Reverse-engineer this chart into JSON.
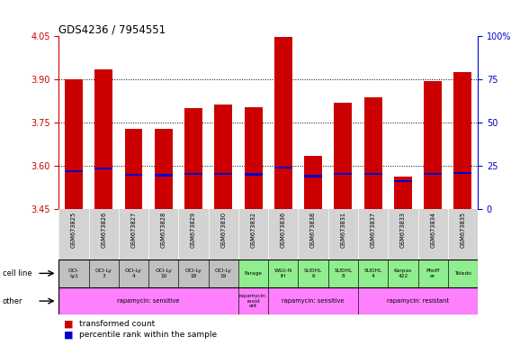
{
  "title": "GDS4236 / 7954551",
  "samples": [
    "GSM673825",
    "GSM673826",
    "GSM673827",
    "GSM673828",
    "GSM673829",
    "GSM673830",
    "GSM673832",
    "GSM673836",
    "GSM673838",
    "GSM673831",
    "GSM673837",
    "GSM673833",
    "GSM673834",
    "GSM673835"
  ],
  "transformed_count": [
    3.9,
    3.935,
    3.73,
    3.73,
    3.8,
    3.815,
    3.805,
    4.048,
    3.635,
    3.82,
    3.84,
    3.565,
    3.895,
    3.925
  ],
  "percentile_rank": [
    3.582,
    3.592,
    3.57,
    3.568,
    3.574,
    3.572,
    3.571,
    3.594,
    3.565,
    3.574,
    3.573,
    3.548,
    3.573,
    3.576
  ],
  "cell_lines": [
    "OCI-\nLy1",
    "OCI-Ly\n3",
    "OCI-Ly\n4",
    "OCI-Ly\n10",
    "OCI-Ly\n18",
    "OCI-Ly\n19",
    "Farage",
    "WSU-N\nIH",
    "SUDHL\n6",
    "SUDHL\n8",
    "SUDHL\n4",
    "Karpas\n422",
    "Pfeiff\ner",
    "Toledo"
  ],
  "cell_line_colors": [
    "#c0c0c0",
    "#c0c0c0",
    "#c0c0c0",
    "#c0c0c0",
    "#c0c0c0",
    "#c0c0c0",
    "#90ee90",
    "#90ee90",
    "#90ee90",
    "#90ee90",
    "#90ee90",
    "#90ee90",
    "#90ee90",
    "#90ee90"
  ],
  "ylim": [
    3.45,
    4.05
  ],
  "yticks_left": [
    3.45,
    3.6,
    3.75,
    3.9,
    4.05
  ],
  "yticks_right_vals": [
    0,
    25,
    50,
    75,
    100
  ],
  "grid_yticks": [
    3.6,
    3.75,
    3.9
  ],
  "bar_color": "#cc0000",
  "percentile_color": "#0000cc",
  "bar_width": 0.6,
  "tick_color_left": "#cc0000",
  "tick_color_right": "#0000cc",
  "other_data": [
    [
      0,
      6,
      "rapamycin: sensitive",
      "#ff80ff"
    ],
    [
      6,
      1,
      "rapamycin:\nresist\nant",
      "#ff80ff"
    ],
    [
      7,
      3,
      "rapamycin: sensitive",
      "#ff80ff"
    ],
    [
      10,
      4,
      "rapamycin: resistant",
      "#ff80ff"
    ]
  ]
}
